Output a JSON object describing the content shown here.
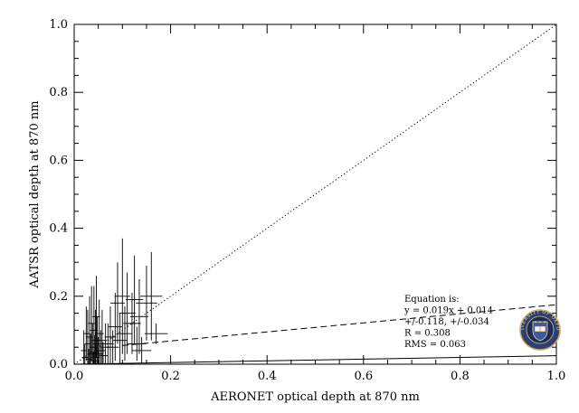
{
  "chart_data": {
    "type": "scatter",
    "xlabel": "AERONET optical depth at 870 nm",
    "ylabel": "AATSR optical depth at 870 nm",
    "xlim": [
      0.0,
      1.0
    ],
    "ylim": [
      0.0,
      1.0
    ],
    "x_ticks": [
      "0.0",
      "0.2",
      "0.4",
      "0.6",
      "0.8",
      "1.0"
    ],
    "y_ticks": [
      "0.0",
      "0.2",
      "0.4",
      "0.6",
      "0.8",
      "1.0"
    ],
    "grid": false,
    "points": [
      {
        "x": 0.02,
        "y": 0.04,
        "yerr": 0.06,
        "xerr": 0.006
      },
      {
        "x": 0.022,
        "y": 0.02,
        "yerr": 0.04,
        "xerr": 0.006
      },
      {
        "x": 0.025,
        "y": 0.09,
        "yerr": 0.08,
        "xerr": 0.006
      },
      {
        "x": 0.028,
        "y": 0.06,
        "yerr": 0.1,
        "xerr": 0.006
      },
      {
        "x": 0.03,
        "y": 0.015,
        "yerr": 0.03,
        "xerr": 0.006
      },
      {
        "x": 0.032,
        "y": 0.08,
        "yerr": 0.12,
        "xerr": 0.007
      },
      {
        "x": 0.034,
        "y": 0.03,
        "yerr": 0.06,
        "xerr": 0.007
      },
      {
        "x": 0.036,
        "y": 0.12,
        "yerr": 0.11,
        "xerr": 0.007
      },
      {
        "x": 0.038,
        "y": 0.05,
        "yerr": 0.07,
        "xerr": 0.007
      },
      {
        "x": 0.04,
        "y": 0.01,
        "yerr": 0.025,
        "xerr": 0.007
      },
      {
        "x": 0.041,
        "y": 0.1,
        "yerr": 0.13,
        "xerr": 0.008
      },
      {
        "x": 0.042,
        "y": 0.035,
        "yerr": 0.05,
        "xerr": 0.008
      },
      {
        "x": 0.044,
        "y": 0.07,
        "yerr": 0.09,
        "xerr": 0.008
      },
      {
        "x": 0.045,
        "y": 0.02,
        "yerr": 0.04,
        "xerr": 0.008
      },
      {
        "x": 0.046,
        "y": 0.14,
        "yerr": 0.12,
        "xerr": 0.008
      },
      {
        "x": 0.048,
        "y": 0.06,
        "yerr": 0.08,
        "xerr": 0.009
      },
      {
        "x": 0.05,
        "y": 0.03,
        "yerr": 0.05,
        "xerr": 0.009
      },
      {
        "x": 0.052,
        "y": 0.09,
        "yerr": 0.1,
        "xerr": 0.009
      },
      {
        "x": 0.055,
        "y": 0.04,
        "yerr": 0.06,
        "xerr": 0.01
      },
      {
        "x": 0.058,
        "y": 0.07,
        "yerr": 0.09,
        "xerr": 0.01
      },
      {
        "x": 0.06,
        "y": 0.025,
        "yerr": 0.04,
        "xerr": 0.01
      },
      {
        "x": 0.065,
        "y": 0.05,
        "yerr": 0.07,
        "xerr": 0.011
      },
      {
        "x": 0.07,
        "y": 0.06,
        "yerr": 0.06,
        "xerr": 0.012
      },
      {
        "x": 0.075,
        "y": 0.08,
        "yerr": 0.09,
        "xerr": 0.012
      },
      {
        "x": 0.08,
        "y": 0.05,
        "yerr": 0.05,
        "xerr": 0.013
      },
      {
        "x": 0.085,
        "y": 0.11,
        "yerr": 0.1,
        "xerr": 0.014
      },
      {
        "x": 0.09,
        "y": 0.18,
        "yerr": 0.12,
        "xerr": 0.015
      },
      {
        "x": 0.095,
        "y": 0.07,
        "yerr": 0.08,
        "xerr": 0.015
      },
      {
        "x": 0.1,
        "y": 0.2,
        "yerr": 0.17,
        "xerr": 0.016
      },
      {
        "x": 0.105,
        "y": 0.09,
        "yerr": 0.08,
        "xerr": 0.016
      },
      {
        "x": 0.11,
        "y": 0.15,
        "yerr": 0.12,
        "xerr": 0.017
      },
      {
        "x": 0.12,
        "y": 0.12,
        "yerr": 0.09,
        "xerr": 0.018
      },
      {
        "x": 0.125,
        "y": 0.19,
        "yerr": 0.13,
        "xerr": 0.018
      },
      {
        "x": 0.13,
        "y": 0.06,
        "yerr": 0.05,
        "xerr": 0.019
      },
      {
        "x": 0.135,
        "y": 0.14,
        "yerr": 0.11,
        "xerr": 0.019
      },
      {
        "x": 0.14,
        "y": 0.04,
        "yerr": 0.04,
        "xerr": 0.02
      },
      {
        "x": 0.15,
        "y": 0.18,
        "yerr": 0.11,
        "xerr": 0.022
      },
      {
        "x": 0.16,
        "y": 0.2,
        "yerr": 0.13,
        "xerr": 0.023
      },
      {
        "x": 0.17,
        "y": 0.09,
        "yerr": 0.03,
        "xerr": 0.024
      }
    ],
    "lines": [
      {
        "style": "dotted",
        "x": [
          0.0,
          1.0
        ],
        "y": [
          0.0,
          1.0
        ]
      },
      {
        "style": "dashed",
        "x": [
          0.1,
          1.0
        ],
        "y": [
          0.055,
          0.175
        ]
      },
      {
        "style": "solid",
        "x": [
          0.0,
          1.0
        ],
        "y": [
          0.0,
          0.025
        ]
      }
    ],
    "annotation": [
      "Equation is:",
      "y = 0.019x + 0.014",
      "+/-0.118, +/-0.034",
      "R = 0.308",
      "RMS = 0.063"
    ]
  },
  "logo": {
    "name": "university-seal",
    "text": "UNIVERSITY OF OXFORD"
  }
}
